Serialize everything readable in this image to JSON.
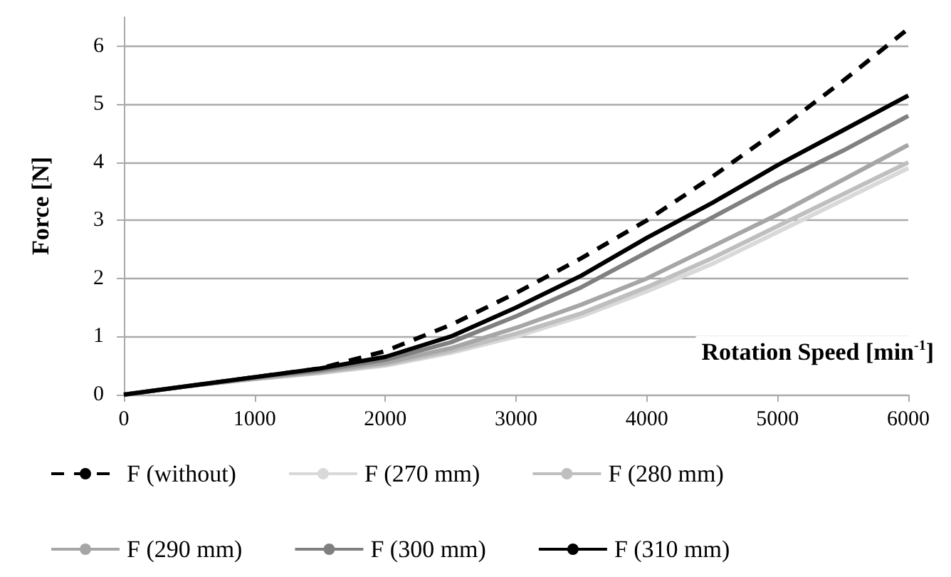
{
  "chart_data": {
    "type": "line",
    "xlabel": "Rotation Speed [min$^{-1}$]",
    "ylabel": "Force [N]",
    "x": [
      0,
      500,
      1000,
      1500,
      2000,
      2500,
      3000,
      3500,
      4000,
      4500,
      5000,
      5500,
      6000
    ],
    "xlim": [
      0,
      6000
    ],
    "xticks": [
      0,
      1000,
      2000,
      3000,
      4000,
      5000,
      6000
    ],
    "ylim": [
      0,
      6.5
    ],
    "yticks": [
      0,
      1,
      2,
      3,
      4,
      5,
      6
    ],
    "grid": "y",
    "legend": "bottom",
    "marker": "none",
    "series": [
      {
        "name": "F (without)",
        "color": "#000000",
        "line_style": "dashed",
        "values": [
          0,
          0.15,
          0.3,
          0.45,
          0.75,
          1.2,
          1.75,
          2.35,
          3.0,
          3.75,
          4.55,
          5.4,
          6.3
        ]
      },
      {
        "name": "F (270 mm)",
        "color": "#d9d9d9",
        "values": [
          0,
          0.15,
          0.27,
          0.37,
          0.5,
          0.72,
          1.0,
          1.35,
          1.78,
          2.25,
          2.8,
          3.35,
          3.9
        ]
      },
      {
        "name": "F (280 mm)",
        "color": "#bfbfbf",
        "values": [
          0,
          0.15,
          0.27,
          0.38,
          0.52,
          0.75,
          1.05,
          1.4,
          1.85,
          2.35,
          2.9,
          3.45,
          4.0
        ]
      },
      {
        "name": "F (290 mm)",
        "color": "#a6a6a6",
        "values": [
          0,
          0.15,
          0.28,
          0.4,
          0.55,
          0.8,
          1.15,
          1.55,
          2.0,
          2.55,
          3.1,
          3.7,
          4.3
        ]
      },
      {
        "name": "F (300 mm)",
        "color": "#808080",
        "values": [
          0,
          0.15,
          0.3,
          0.42,
          0.6,
          0.9,
          1.35,
          1.85,
          2.45,
          3.05,
          3.65,
          4.2,
          4.8
        ]
      },
      {
        "name": "F (310 mm)",
        "color": "#000000",
        "values": [
          0,
          0.15,
          0.3,
          0.45,
          0.65,
          1.0,
          1.5,
          2.05,
          2.7,
          3.3,
          3.95,
          4.55,
          5.15
        ]
      }
    ]
  }
}
